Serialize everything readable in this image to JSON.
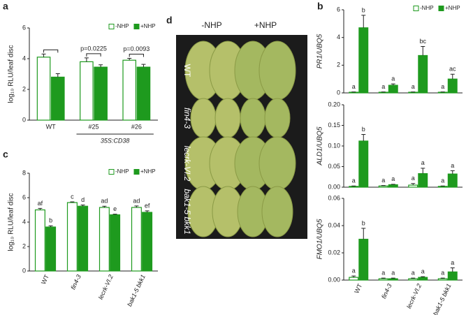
{
  "panels": [
    "a",
    "b",
    "c",
    "d"
  ],
  "photo": {
    "columns": [
      "-NHP",
      "+NHP"
    ],
    "rows": [
      "WT",
      "fin4-3",
      "lecrk-VI.2",
      "bak1-5 bkk1"
    ]
  },
  "chart_data": [
    {
      "type": "bar",
      "ylabel": "log₁₀ RLU/leaf disc",
      "categories": [
        "WT",
        "#25",
        "#26"
      ],
      "group_label": "35S:CD38",
      "annotations": [
        "p=0.0225",
        "p=0.0093"
      ],
      "ylim": [
        0,
        6
      ],
      "yticks": [
        0,
        2,
        4,
        6
      ],
      "legend": "upper right",
      "series": [
        {
          "name": "-NHP",
          "color": "#1e9a1e",
          "hollow": true,
          "values": [
            4.1,
            3.8,
            3.9
          ],
          "errors": [
            0.2,
            0.25,
            0.12
          ]
        },
        {
          "name": "+NHP",
          "color": "#1e9a1e",
          "hollow": false,
          "values": [
            2.8,
            3.45,
            3.45
          ],
          "errors": [
            0.22,
            0.15,
            0.18
          ]
        }
      ]
    },
    {
      "type": "bar",
      "ylabel": "log₁₀ RLU/leaf disc",
      "categories": [
        "WT",
        "fin4-3",
        "lecrk-VI.2",
        "bak1-5 bkk1"
      ],
      "ylim": [
        0,
        8
      ],
      "yticks": [
        0,
        2,
        4,
        6,
        8
      ],
      "legend": "upper right",
      "series": [
        {
          "name": "-NHP",
          "color": "#1e9a1e",
          "hollow": true,
          "values": [
            5.0,
            5.6,
            5.2,
            5.2
          ],
          "errors": [
            0.12,
            0.06,
            0.1,
            0.12
          ],
          "letters": [
            "af",
            "c",
            "ad",
            "ad"
          ]
        },
        {
          "name": "+NHP",
          "color": "#1e9a1e",
          "hollow": false,
          "values": [
            3.6,
            5.3,
            4.6,
            4.8
          ],
          "errors": [
            0.1,
            0.1,
            0.05,
            0.12
          ],
          "letters": [
            "b",
            "d",
            "e",
            "ef"
          ]
        }
      ]
    },
    {
      "type": "bar",
      "ylabel": "PR1/UBQ5",
      "ylim": [
        0,
        6
      ],
      "yticks": [
        0,
        2,
        4,
        6
      ],
      "legend": "upper right",
      "series": [
        {
          "name": "-NHP",
          "color": "#1e9a1e",
          "hollow": true,
          "values": [
            0.05,
            0.05,
            0.05,
            0.05
          ],
          "errors": [
            0.02,
            0.02,
            0.02,
            0.02
          ],
          "letters": [
            "a",
            "a",
            "a",
            "a"
          ]
        },
        {
          "name": "+NHP",
          "color": "#1e9a1e",
          "hollow": false,
          "values": [
            4.7,
            0.55,
            2.7,
            1.0
          ],
          "errors": [
            0.9,
            0.1,
            0.65,
            0.35
          ],
          "letters": [
            "b",
            "a",
            "bc",
            "ac"
          ]
        }
      ]
    },
    {
      "type": "bar",
      "ylabel": "ALD1/UBQ5",
      "ylim": [
        0,
        0.2
      ],
      "yticks": [
        {
          "value": 0,
          "label": "0.00"
        },
        {
          "value": 0.05,
          "label": "0.05"
        },
        {
          "value": 0.1,
          "label": "0.10"
        },
        {
          "value": 0.15,
          "label": "0.15"
        },
        {
          "value": 0.2,
          "label": "0.20"
        }
      ],
      "series": [
        {
          "color": "#1e9a1e",
          "hollow": true,
          "values": [
            0.002,
            0.003,
            0.005,
            0.002
          ],
          "errors": [
            0.001,
            0.001,
            0.004,
            0.001
          ],
          "letters": [
            "a",
            "a",
            "a",
            "a"
          ]
        },
        {
          "color": "#1e9a1e",
          "hollow": false,
          "values": [
            0.112,
            0.006,
            0.033,
            0.032
          ],
          "errors": [
            0.016,
            0.001,
            0.013,
            0.008
          ],
          "letters": [
            "b",
            "a",
            "a",
            "a"
          ]
        }
      ]
    },
    {
      "type": "bar",
      "ylabel": "FMO1/UBQ5",
      "categories": [
        "WT",
        "fin4-3",
        "lecrk-VI.2",
        "bak1-5 bkk1"
      ],
      "ylim": [
        0,
        0.06
      ],
      "yticks": [
        {
          "value": 0,
          "label": "0.00"
        },
        {
          "value": 0.02,
          "label": "0.02"
        },
        {
          "value": 0.04,
          "label": "0.04"
        },
        {
          "value": 0.06,
          "label": "0.06"
        }
      ],
      "series": [
        {
          "color": "#1e9a1e",
          "hollow": true,
          "values": [
            0.002,
            0.001,
            0.001,
            0.001
          ],
          "errors": [
            0.001,
            0.0005,
            0.0005,
            0.0005
          ],
          "letters": [
            "a",
            "a",
            "a",
            "a"
          ]
        },
        {
          "color": "#1e9a1e",
          "hollow": false,
          "values": [
            0.03,
            0.001,
            0.002,
            0.006
          ],
          "errors": [
            0.008,
            0.0005,
            0.0005,
            0.003
          ],
          "letters": [
            "b",
            "a",
            "a",
            "a"
          ]
        }
      ]
    }
  ]
}
